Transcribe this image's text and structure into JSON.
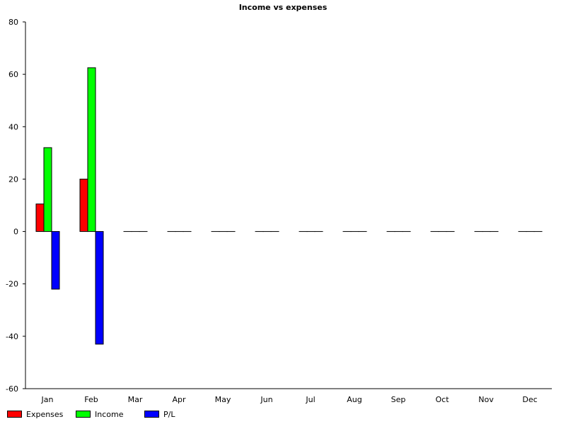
{
  "chart_data": {
    "type": "bar",
    "title": "Income vs expenses",
    "xlabel": "",
    "ylabel": "",
    "categories": [
      "Jan",
      "Feb",
      "Mar",
      "Apr",
      "May",
      "Jun",
      "Jul",
      "Aug",
      "Sep",
      "Oct",
      "Nov",
      "Dec"
    ],
    "series": [
      {
        "name": "Expenses",
        "color": "#ff0000",
        "values": [
          10.5,
          20,
          0,
          0,
          0,
          0,
          0,
          0,
          0,
          0,
          0,
          0
        ]
      },
      {
        "name": "Income",
        "color": "#00ff00",
        "values": [
          32,
          62.5,
          0,
          0,
          0,
          0,
          0,
          0,
          0,
          0,
          0,
          0
        ]
      },
      {
        "name": "P/L",
        "color": "#0000ff",
        "values": [
          -22,
          -43,
          0,
          0,
          0,
          0,
          0,
          0,
          0,
          0,
          0,
          0
        ]
      }
    ],
    "ylim": [
      -60,
      80
    ],
    "yticks": [
      80,
      60,
      40,
      20,
      0,
      -20,
      -40,
      -60
    ],
    "grid": false,
    "legend_position": "bottom-left"
  }
}
